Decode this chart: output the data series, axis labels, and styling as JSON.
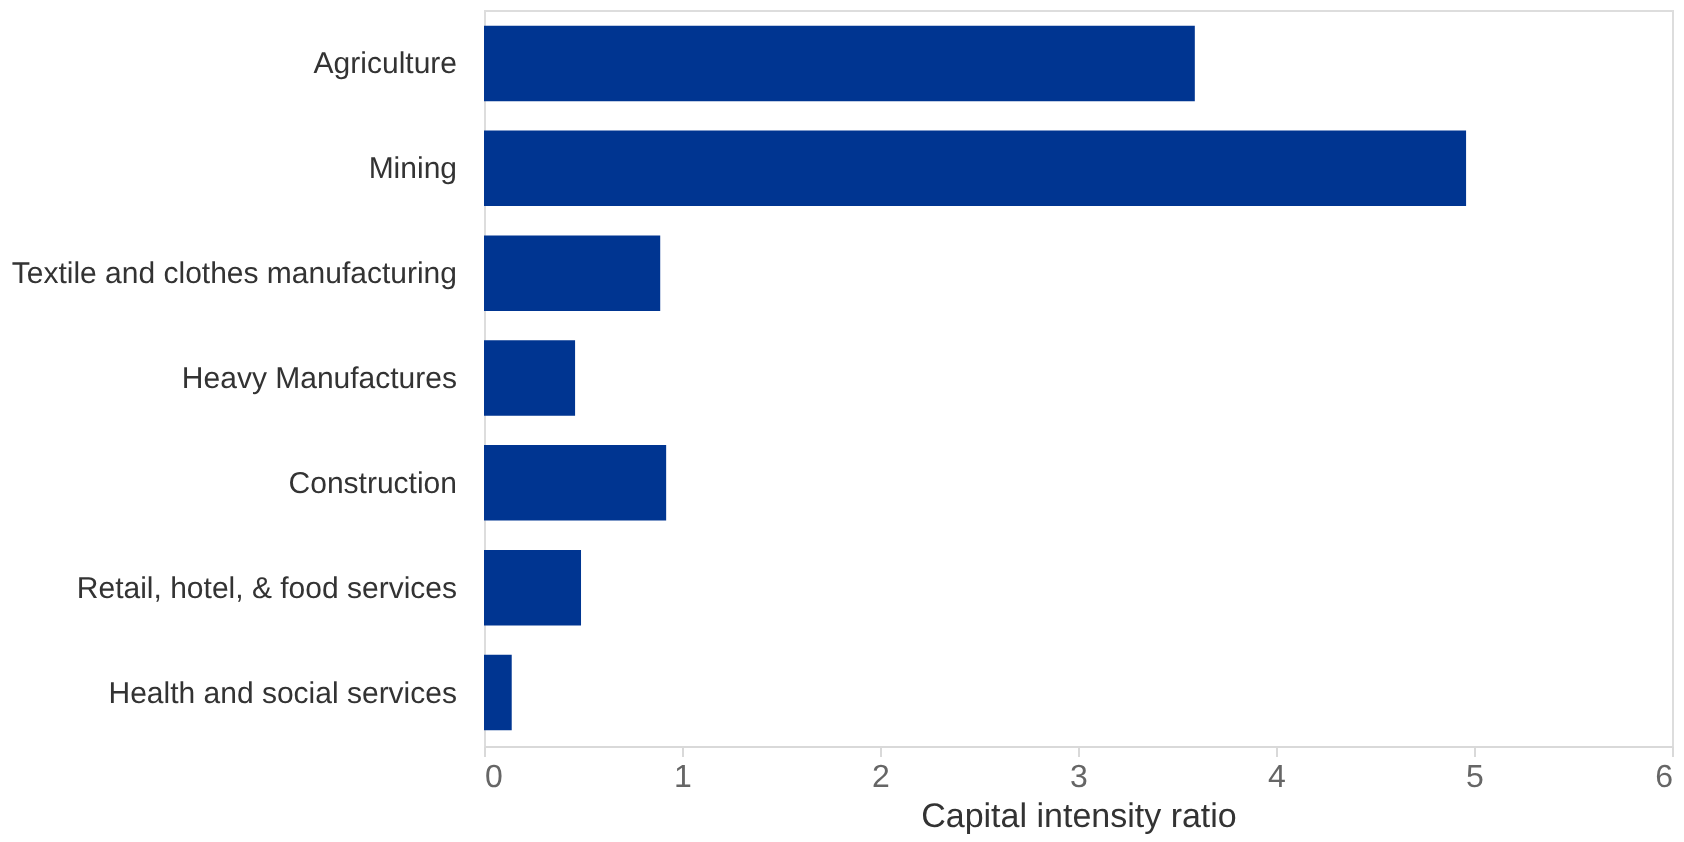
{
  "chart_data": {
    "type": "bar",
    "orientation": "horizontal",
    "xlabel": "Capital intensity ratio",
    "categories": [
      "Agriculture",
      "Mining",
      "Textile and clothes manufacturing",
      "Heavy Manufactures",
      "Construction",
      "Retail, hotel, & food services",
      "Health and social services"
    ],
    "values": [
      3.59,
      4.96,
      0.89,
      0.46,
      0.92,
      0.49,
      0.14
    ],
    "color": "#003591",
    "xlim": [
      0,
      6
    ],
    "xticks": [
      0,
      1,
      2,
      3,
      4,
      5,
      6
    ],
    "grid": false
  }
}
